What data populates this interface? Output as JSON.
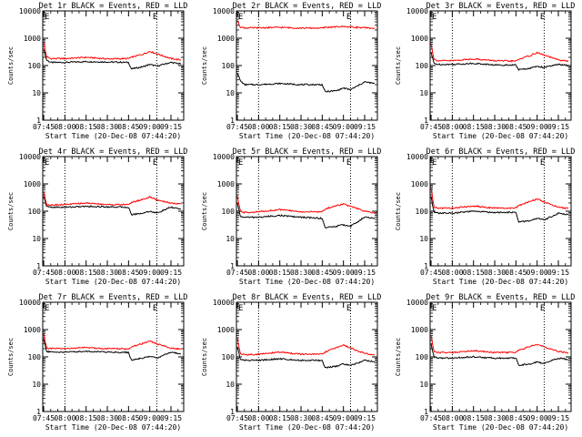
{
  "figure": {
    "xlabel": "Start Time (20-Dec-08 07:44:20)",
    "ylabel": "Counts/sec",
    "x_tick_labels": [
      "07:45",
      "08:00",
      "08:15",
      "08:30",
      "08:45",
      "09:00",
      "09:15"
    ],
    "y_tick_labels": [
      "1",
      "10",
      "100",
      "1000",
      "10000"
    ],
    "corner_marker": "E",
    "colors": {
      "events": "#000000",
      "lld": "#ff0000",
      "background": "#ffffff"
    }
  },
  "chart_data": [
    {
      "type": "line",
      "title": "Det 1r BLACK = Events, RED = LLD",
      "xlabel": "Start Time (20-Dec-08 07:44:20)",
      "ylabel": "Counts/sec",
      "y_scale": "log",
      "ylim": [
        1,
        10000
      ],
      "xlim": [
        "07:44:20",
        "09:24:00"
      ],
      "vlines": [
        "08:00",
        "09:05"
      ],
      "x": [
        "07:45",
        "07:47",
        "07:50",
        "08:00",
        "08:15",
        "08:30",
        "08:45",
        "08:47",
        "08:55",
        "09:00",
        "09:05",
        "09:15",
        "09:22"
      ],
      "series": [
        {
          "name": "Events",
          "values": [
            400,
            160,
            130,
            130,
            140,
            135,
            130,
            75,
            90,
            110,
            95,
            130,
            115
          ]
        },
        {
          "name": "LLD",
          "values": [
            700,
            210,
            180,
            180,
            200,
            175,
            180,
            200,
            260,
            330,
            270,
            180,
            160
          ]
        }
      ]
    },
    {
      "type": "line",
      "title": "Det 2r BLACK = Events, RED = LLD",
      "xlabel": "Start Time (20-Dec-08 07:44:20)",
      "ylabel": "Counts/sec",
      "y_scale": "log",
      "ylim": [
        1,
        10000
      ],
      "xlim": [
        "07:44:20",
        "09:24:00"
      ],
      "vlines": [
        "08:00",
        "09:05"
      ],
      "x": [
        "07:45",
        "07:47",
        "07:50",
        "08:00",
        "08:15",
        "08:30",
        "08:45",
        "08:47",
        "08:55",
        "09:00",
        "09:05",
        "09:15",
        "09:22"
      ],
      "series": [
        {
          "name": "Events",
          "values": [
            55,
            28,
            20,
            20,
            22,
            20,
            20,
            11,
            12,
            15,
            13,
            25,
            22
          ]
        },
        {
          "name": "LLD",
          "values": [
            4500,
            2600,
            2400,
            2400,
            2500,
            2350,
            2350,
            2500,
            2600,
            2700,
            2600,
            2400,
            2300
          ]
        }
      ]
    },
    {
      "type": "line",
      "title": "Det 3r BLACK = Events, RED = LLD",
      "xlabel": "Start Time (20-Dec-08 07:44:20)",
      "ylabel": "Counts/sec",
      "y_scale": "log",
      "ylim": [
        1,
        10000
      ],
      "xlim": [
        "07:44:20",
        "09:24:00"
      ],
      "vlines": [
        "08:00",
        "09:05"
      ],
      "x": [
        "07:45",
        "07:47",
        "07:50",
        "08:00",
        "08:15",
        "08:30",
        "08:45",
        "08:47",
        "08:55",
        "09:00",
        "09:05",
        "09:15",
        "09:22"
      ],
      "series": [
        {
          "name": "Events",
          "values": [
            300,
            120,
            110,
            110,
            120,
            105,
            105,
            70,
            80,
            95,
            85,
            110,
            100
          ]
        },
        {
          "name": "LLD",
          "values": [
            650,
            170,
            150,
            150,
            175,
            150,
            145,
            170,
            230,
            300,
            240,
            160,
            145
          ]
        }
      ]
    },
    {
      "type": "line",
      "title": "Det 4r BLACK = Events, RED = LLD",
      "xlabel": "Start Time (20-Dec-08 07:44:20)",
      "ylabel": "Counts/sec",
      "y_scale": "log",
      "ylim": [
        1,
        10000
      ],
      "xlim": [
        "07:44:20",
        "09:24:00"
      ],
      "vlines": [
        "08:00",
        "09:05"
      ],
      "x": [
        "07:45",
        "07:47",
        "07:50",
        "08:00",
        "08:15",
        "08:30",
        "08:45",
        "08:47",
        "08:55",
        "09:00",
        "09:05",
        "09:15",
        "09:22"
      ],
      "series": [
        {
          "name": "Events",
          "values": [
            350,
            150,
            140,
            140,
            150,
            145,
            140,
            75,
            85,
            100,
            85,
            140,
            120
          ]
        },
        {
          "name": "LLD",
          "values": [
            500,
            180,
            170,
            175,
            200,
            175,
            175,
            210,
            270,
            330,
            260,
            200,
            180
          ]
        }
      ]
    },
    {
      "type": "line",
      "title": "Det 5r BLACK = Events, RED = LLD",
      "xlabel": "Start Time (20-Dec-08 07:44:20)",
      "ylabel": "Counts/sec",
      "y_scale": "log",
      "ylim": [
        1,
        10000
      ],
      "xlim": [
        "07:44:20",
        "09:24:00"
      ],
      "vlines": [
        "08:00",
        "09:05"
      ],
      "x": [
        "07:45",
        "07:47",
        "07:50",
        "08:00",
        "08:15",
        "08:30",
        "08:45",
        "08:47",
        "08:55",
        "09:00",
        "09:05",
        "09:15",
        "09:22"
      ],
      "series": [
        {
          "name": "Events",
          "values": [
            200,
            65,
            60,
            60,
            70,
            60,
            55,
            25,
            28,
            32,
            28,
            60,
            55
          ]
        },
        {
          "name": "LLD",
          "values": [
            350,
            100,
            90,
            95,
            115,
            95,
            95,
            120,
            160,
            185,
            150,
            100,
            85
          ]
        }
      ]
    },
    {
      "type": "line",
      "title": "Det 6r BLACK = Events, RED = LLD",
      "xlabel": "Start Time (20-Dec-08 07:44:20)",
      "ylabel": "Counts/sec",
      "y_scale": "log",
      "ylim": [
        1,
        10000
      ],
      "xlim": [
        "07:44:20",
        "09:24:00"
      ],
      "vlines": [
        "08:00",
        "09:05"
      ],
      "x": [
        "07:45",
        "07:47",
        "07:50",
        "08:00",
        "08:15",
        "08:30",
        "08:45",
        "08:47",
        "08:55",
        "09:00",
        "09:05",
        "09:15",
        "09:22"
      ],
      "series": [
        {
          "name": "Events",
          "values": [
            350,
            90,
            85,
            85,
            100,
            90,
            90,
            40,
            45,
            55,
            48,
            85,
            75
          ]
        },
        {
          "name": "LLD",
          "values": [
            700,
            140,
            130,
            130,
            155,
            130,
            130,
            160,
            230,
            280,
            220,
            140,
            125
          ]
        }
      ]
    },
    {
      "type": "line",
      "title": "Det 7r BLACK = Events, RED = LLD",
      "xlabel": "Start Time (20-Dec-08 07:44:20)",
      "ylabel": "Counts/sec",
      "y_scale": "log",
      "ylim": [
        1,
        10000
      ],
      "xlim": [
        "07:44:20",
        "09:24:00"
      ],
      "vlines": [
        "08:00",
        "09:05"
      ],
      "x": [
        "07:45",
        "07:47",
        "07:50",
        "08:00",
        "08:15",
        "08:30",
        "08:45",
        "08:47",
        "08:55",
        "09:00",
        "09:05",
        "09:15",
        "09:22"
      ],
      "series": [
        {
          "name": "Events",
          "values": [
            450,
            160,
            150,
            150,
            160,
            150,
            145,
            75,
            90,
            105,
            90,
            150,
            130
          ]
        },
        {
          "name": "LLD",
          "values": [
            700,
            210,
            200,
            200,
            220,
            200,
            195,
            230,
            310,
            380,
            300,
            210,
            190
          ]
        }
      ]
    },
    {
      "type": "line",
      "title": "Det 8r BLACK = Events, RED = LLD",
      "xlabel": "Start Time (20-Dec-08 07:44:20)",
      "ylabel": "Counts/sec",
      "y_scale": "log",
      "ylim": [
        1,
        10000
      ],
      "xlim": [
        "07:44:20",
        "09:24:00"
      ],
      "vlines": [
        "08:00",
        "09:05"
      ],
      "x": [
        "07:45",
        "07:47",
        "07:50",
        "08:00",
        "08:15",
        "08:30",
        "08:45",
        "08:47",
        "08:55",
        "09:00",
        "09:05",
        "09:15",
        "09:22"
      ],
      "series": [
        {
          "name": "Events",
          "values": [
            250,
            80,
            75,
            75,
            85,
            75,
            75,
            40,
            45,
            55,
            48,
            75,
            65
          ]
        },
        {
          "name": "LLD",
          "values": [
            500,
            130,
            120,
            125,
            150,
            125,
            125,
            150,
            220,
            270,
            210,
            135,
            115
          ]
        }
      ]
    },
    {
      "type": "line",
      "title": "Det 9r BLACK = Events, RED = LLD",
      "xlabel": "Start Time (20-Dec-08 07:44:20)",
      "ylabel": "Counts/sec",
      "y_scale": "log",
      "ylim": [
        1,
        10000
      ],
      "xlim": [
        "07:44:20",
        "09:24:00"
      ],
      "vlines": [
        "08:00",
        "09:05"
      ],
      "x": [
        "07:45",
        "07:47",
        "07:50",
        "08:00",
        "08:15",
        "08:30",
        "08:45",
        "08:47",
        "08:55",
        "09:00",
        "09:05",
        "09:15",
        "09:22"
      ],
      "series": [
        {
          "name": "Events",
          "values": [
            300,
            100,
            90,
            90,
            100,
            90,
            90,
            50,
            55,
            65,
            58,
            90,
            80
          ]
        },
        {
          "name": "LLD",
          "values": [
            600,
            160,
            145,
            145,
            170,
            145,
            145,
            175,
            240,
            290,
            230,
            160,
            140
          ]
        }
      ]
    }
  ]
}
